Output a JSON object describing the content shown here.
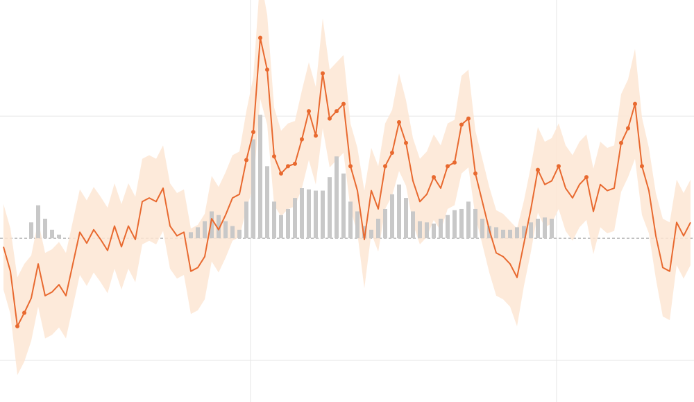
{
  "chart_data": {
    "type": "line",
    "x": [
      0,
      1,
      2,
      3,
      4,
      5,
      6,
      7,
      8,
      9,
      10,
      11,
      12,
      13,
      14,
      15,
      16,
      17,
      18,
      19,
      20,
      21,
      22,
      23,
      24,
      25,
      26,
      27,
      28,
      29,
      30,
      31,
      32,
      33,
      34,
      35,
      36,
      37,
      38,
      39,
      40,
      41,
      42,
      43,
      44,
      45,
      46,
      47,
      48,
      49,
      50,
      51,
      52,
      53,
      54,
      55,
      56,
      57,
      58,
      59,
      60,
      61,
      62,
      63,
      64,
      65,
      66,
      67,
      68,
      69,
      70,
      71,
      72,
      73,
      74,
      75,
      76,
      77,
      78,
      79,
      80,
      81,
      82,
      83,
      84,
      85,
      86,
      87,
      88,
      89,
      90,
      91,
      92,
      93,
      94,
      95,
      96,
      97,
      98,
      99
    ],
    "xlim": [
      -0.5,
      99.5
    ],
    "xticks": [
      35.6,
      79.7
    ],
    "ylim": [
      -1.34,
      1.95
    ],
    "yticks": [
      -1,
      0,
      1
    ],
    "grid": true,
    "baseline_dashed": true,
    "series": [
      {
        "color": "#e8692f",
        "band_color": "#fde6d4",
        "values": [
          -0.07,
          -0.27,
          -0.72,
          -0.61,
          -0.49,
          -0.21,
          -0.47,
          -0.44,
          -0.38,
          -0.47,
          -0.21,
          0.05,
          -0.04,
          0.07,
          -0.01,
          -0.1,
          0.1,
          -0.07,
          0.1,
          -0.01,
          0.3,
          0.33,
          0.3,
          0.41,
          0.1,
          0.02,
          0.05,
          -0.27,
          -0.24,
          -0.15,
          0.16,
          0.07,
          0.19,
          0.33,
          0.36,
          0.64,
          0.87,
          1.64,
          1.38,
          0.67,
          0.53,
          0.59,
          0.61,
          0.81,
          1.04,
          0.84,
          1.35,
          0.98,
          1.04,
          1.1,
          0.59,
          0.39,
          -0.01,
          0.39,
          0.24,
          0.59,
          0.7,
          0.95,
          0.78,
          0.47,
          0.3,
          0.36,
          0.5,
          0.41,
          0.59,
          0.62,
          0.93,
          0.98,
          0.53,
          0.3,
          0.07,
          -0.12,
          -0.15,
          -0.21,
          -0.32,
          -0.04,
          0.24,
          0.56,
          0.44,
          0.47,
          0.59,
          0.41,
          0.33,
          0.44,
          0.5,
          0.22,
          0.44,
          0.39,
          0.41,
          0.78,
          0.9,
          1.1,
          0.59,
          0.39,
          0.02,
          -0.24,
          -0.27,
          0.13,
          0.02,
          0.13
        ],
        "errors": [
          0.35,
          0.35,
          0.4,
          0.4,
          0.35,
          0.35,
          0.35,
          0.35,
          0.35,
          0.35,
          0.35,
          0.35,
          0.35,
          0.35,
          0.35,
          0.35,
          0.35,
          0.35,
          0.35,
          0.35,
          0.35,
          0.35,
          0.35,
          0.35,
          0.35,
          0.35,
          0.35,
          0.35,
          0.35,
          0.35,
          0.35,
          0.35,
          0.35,
          0.35,
          0.35,
          0.4,
          0.45,
          0.5,
          0.45,
          0.4,
          0.35,
          0.35,
          0.35,
          0.4,
          0.4,
          0.4,
          0.45,
          0.4,
          0.4,
          0.4,
          0.35,
          0.35,
          0.4,
          0.35,
          0.35,
          0.35,
          0.35,
          0.4,
          0.35,
          0.35,
          0.35,
          0.35,
          0.35,
          0.35,
          0.35,
          0.35,
          0.4,
          0.4,
          0.35,
          0.35,
          0.35,
          0.35,
          0.35,
          0.35,
          0.4,
          0.35,
          0.35,
          0.35,
          0.35,
          0.35,
          0.35,
          0.35,
          0.35,
          0.35,
          0.35,
          0.35,
          0.35,
          0.35,
          0.35,
          0.4,
          0.4,
          0.45,
          0.4,
          0.35,
          0.35,
          0.4,
          0.4,
          0.35,
          0.35,
          0.35
        ]
      }
    ],
    "bars": {
      "color": "#c8c8c8",
      "values": [
        null,
        null,
        null,
        null,
        0.13,
        0.27,
        0.16,
        0.07,
        0.03,
        null,
        null,
        null,
        null,
        null,
        null,
        null,
        null,
        null,
        null,
        null,
        null,
        null,
        null,
        null,
        null,
        null,
        null,
        0.05,
        0.09,
        0.14,
        0.22,
        0.19,
        0.14,
        0.1,
        0.07,
        0.3,
        0.81,
        1.01,
        0.59,
        0.3,
        0.19,
        0.24,
        0.33,
        0.41,
        0.4,
        0.39,
        0.39,
        0.5,
        0.67,
        0.53,
        0.3,
        0.22,
        0.1,
        0.07,
        0.16,
        0.24,
        0.36,
        0.44,
        0.33,
        0.22,
        0.14,
        0.13,
        0.12,
        0.16,
        0.19,
        0.23,
        0.24,
        0.3,
        0.24,
        0.16,
        0.1,
        0.09,
        0.07,
        0.07,
        0.09,
        0.1,
        0.13,
        0.16,
        0.17,
        0.16,
        null,
        null,
        null,
        null,
        null,
        null,
        null,
        null,
        null,
        null,
        null,
        null,
        null,
        null,
        null,
        null,
        null,
        null,
        null,
        null
      ]
    }
  }
}
